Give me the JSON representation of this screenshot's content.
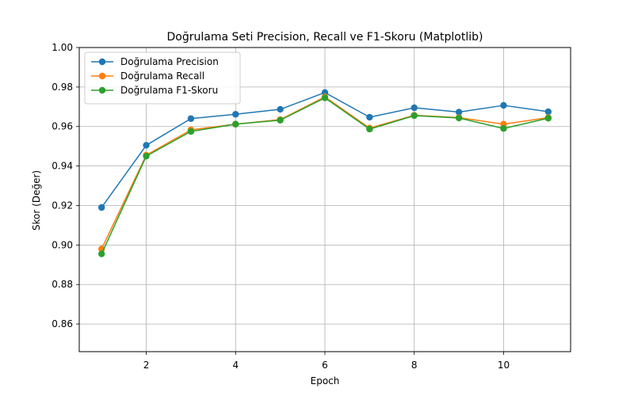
{
  "chart_data": {
    "type": "line",
    "title": "Doğrulama Seti Precision, Recall ve F1-Skoru (Matplotlib)",
    "xlabel": "Epoch",
    "ylabel": "Skor (Değer)",
    "x": [
      1,
      2,
      3,
      4,
      5,
      6,
      7,
      8,
      9,
      10,
      11
    ],
    "xlim": [
      0.5,
      11.5
    ],
    "ylim": [
      0.846,
      1.0
    ],
    "xticks": [
      2,
      4,
      6,
      8,
      10
    ],
    "xtick_labels": [
      "2",
      "4",
      "6",
      "8",
      "10"
    ],
    "yticks": [
      0.86,
      0.88,
      0.9,
      0.92,
      0.94,
      0.96,
      0.98,
      1.0
    ],
    "ytick_labels": [
      "0.86",
      "0.88",
      "0.90",
      "0.92",
      "0.94",
      "0.96",
      "0.98",
      "1.00"
    ],
    "grid": true,
    "legend_position": "top-left",
    "series": [
      {
        "name": "Doğrulama Precision",
        "color": "#1f77b4",
        "values": [
          0.919,
          0.9505,
          0.964,
          0.9662,
          0.9687,
          0.9772,
          0.9647,
          0.9695,
          0.9673,
          0.9707,
          0.9675
        ]
      },
      {
        "name": "Doğrulama Recall",
        "color": "#ff7f0e",
        "values": [
          0.898,
          0.9455,
          0.9583,
          0.9612,
          0.9635,
          0.975,
          0.9592,
          0.9657,
          0.9645,
          0.9612,
          0.9645
        ]
      },
      {
        "name": "Doğrulama F1-Skoru",
        "color": "#2ca02c",
        "values": [
          0.8955,
          0.945,
          0.9575,
          0.9612,
          0.9632,
          0.9745,
          0.9587,
          0.9655,
          0.9643,
          0.959,
          0.9642
        ]
      }
    ]
  }
}
